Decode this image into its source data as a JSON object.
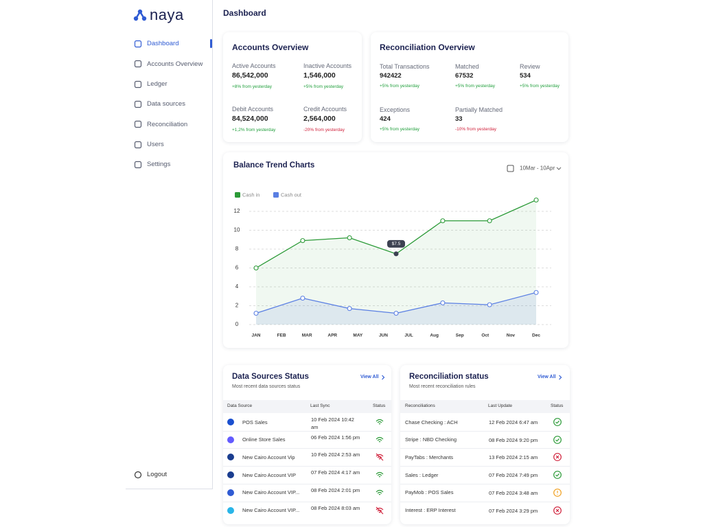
{
  "sidebar": {
    "logo": "naya",
    "nav": [
      "Dashboard",
      "Accounts Overview",
      "Ledger",
      "Data sources",
      "Reconciliation",
      "Users",
      "Settings"
    ],
    "logout": "Logout"
  },
  "header": {
    "title": "Dashboard"
  },
  "accounts_overview": {
    "title": "Accounts Overview",
    "metrics": [
      {
        "label": "Active Accounts",
        "value": "86,542,000",
        "change": "+8% from yesterday"
      },
      {
        "label": "Inactive Accounts",
        "value": "1,546,000",
        "change": "+5% from yesterday"
      },
      {
        "label": "Debit Accounts",
        "value": "84,524,000",
        "change": "+1,2% from yesterday"
      },
      {
        "label": "Credit Accounts",
        "value": "2,564,000",
        "change": "-20% from yesterday"
      }
    ]
  },
  "reconciliation_overview": {
    "title": "Reconciliation Overview",
    "metrics": [
      {
        "label": "Total Transactions",
        "value": "942422",
        "change": "+5% from yesterday"
      },
      {
        "label": "Matched",
        "value": "67532",
        "change": "+5% from yesterday"
      },
      {
        "label": "Review",
        "value": "534",
        "change": "+5% from yesterday"
      },
      {
        "label": "Exceptions",
        "value": "424",
        "change": "+5% from yesterday"
      },
      {
        "label": "Partially Matched",
        "value": "33",
        "change": "-10% from yesterday"
      }
    ]
  },
  "chart_data": {
    "type": "line",
    "title": "Balance Trend Charts",
    "date_range": "10Mar - 10Apr",
    "x": [
      0,
      1.83,
      3.67,
      5.5,
      7.33,
      9.17,
      11
    ],
    "xlim": [
      0,
      11
    ],
    "xticks": [
      {
        "value": 0,
        "label": "JAN"
      },
      {
        "value": 1,
        "label": "FEB"
      },
      {
        "value": 2,
        "label": "MAR"
      },
      {
        "value": 3,
        "label": "APR"
      },
      {
        "value": 4,
        "label": "MAY"
      },
      {
        "value": 5,
        "label": "JUN"
      },
      {
        "value": 6,
        "label": "JUL"
      },
      {
        "value": 7,
        "label": "Aug"
      },
      {
        "value": 8,
        "label": "Sep"
      },
      {
        "value": 9,
        "label": "Oct"
      },
      {
        "value": 10,
        "label": "Nov"
      },
      {
        "value": 11,
        "label": "Dec"
      }
    ],
    "ylim": [
      0,
      14
    ],
    "yticks": [
      0,
      2,
      4,
      6,
      8,
      10,
      12
    ],
    "grid": true,
    "legend": "top-left",
    "series": [
      {
        "name": "Cash in",
        "color": "#2b9a37",
        "values": [
          6,
          8.9,
          9.2,
          7.5,
          11,
          11,
          13.2
        ],
        "value_labels": [
          null,
          null,
          null,
          "$7.5",
          null,
          null,
          null
        ]
      },
      {
        "name": "Cash out",
        "color": "#5a7fe3",
        "values": [
          1.2,
          2.8,
          1.7,
          1.2,
          2.3,
          2.1,
          3.4
        ]
      }
    ]
  },
  "data_sources": {
    "title": "Data Sources Status",
    "subtitle": "Most recent data sources status",
    "view_all": "View All",
    "columns": [
      "Data Source",
      "Last Sync",
      "Status"
    ],
    "rows": [
      {
        "name": "POS Sales",
        "date": "10 Feb 2024 10:42 am",
        "status": "ok"
      },
      {
        "name": "Online Store Sales",
        "date": "06 Feb 2024 1:56 pm",
        "status": "ok"
      },
      {
        "name": "New Cairo Account Vip",
        "date": "10 Feb 2024 2:53 am",
        "status": "error"
      },
      {
        "name": "New Cairo Account VIP",
        "date": "07 Feb 2024 4:17 am",
        "status": "ok"
      },
      {
        "name": "New Cairo Account VIP...",
        "date": "08 Feb 2024 2:01 pm",
        "status": "ok"
      },
      {
        "name": "New Cairo Account VIP...",
        "date": "08 Feb 2024 8:03 am",
        "status": "error"
      }
    ]
  },
  "reconciliation_status": {
    "title": "Reconciliation status",
    "subtitle": "Most recent reconciliation rules",
    "view_all": "View All",
    "columns": [
      "Reconciliations",
      "Last Update",
      "Status"
    ],
    "rows": [
      {
        "name": "Chase Checking : ACH",
        "date": "12 Feb 2024 6:47 am",
        "status": "ok"
      },
      {
        "name": "Stripe : NBD Checking",
        "date": "08 Feb 2024 9:20 pm",
        "status": "ok"
      },
      {
        "name": "PayTabs : Merchants",
        "date": "13 Feb 2024 2:15 am",
        "status": "error"
      },
      {
        "name": "Sales : Ledger",
        "date": "07 Feb 2024 7:49 pm",
        "status": "ok"
      },
      {
        "name": "PayMob : POS Sales",
        "date": "07 Feb 2024 3:48 am",
        "status": "warning"
      },
      {
        "name": "Interest : ERP Interest",
        "date": "07 Feb 2024 3:29 pm",
        "status": "error"
      }
    ]
  }
}
